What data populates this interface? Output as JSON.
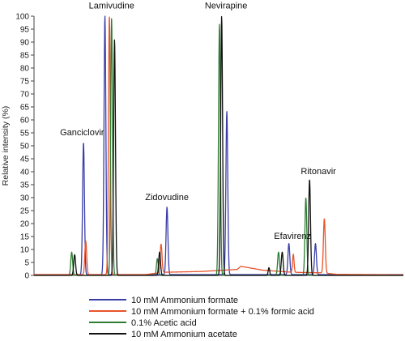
{
  "chart_data": {
    "type": "line",
    "title": "",
    "xlabel": "",
    "ylabel": "Relative intensity (%)",
    "ylim": [
      0,
      100
    ],
    "yticks": [
      0,
      5,
      10,
      15,
      20,
      25,
      30,
      35,
      40,
      45,
      50,
      55,
      60,
      65,
      70,
      75,
      80,
      85,
      90,
      95,
      100
    ],
    "xlim": [
      0,
      100
    ],
    "grid": false,
    "legend_position": "bottom",
    "peak_labels": [
      {
        "text": "Ganciclovir",
        "x": 13,
        "y": 54
      },
      {
        "text": "Lamivudine",
        "x": 21,
        "y": 103
      },
      {
        "text": "Nevirapine",
        "x": 52,
        "y": 103
      },
      {
        "text": "Zidovudine",
        "x": 36,
        "y": 29
      },
      {
        "text": "Efavirenz",
        "x": 70,
        "y": 14
      },
      {
        "text": "Ritonavir",
        "x": 77,
        "y": 39
      }
    ],
    "series": [
      {
        "name": "10 mM Ammonium formate",
        "color": "#3a3fa8",
        "baseline": 0.3,
        "peaks": [
          [
            13.4,
            51,
            0.25
          ],
          [
            19.2,
            100,
            0.25
          ],
          [
            36.0,
            26,
            0.25
          ],
          [
            52.2,
            63,
            0.25
          ],
          [
            69.0,
            12,
            0.25
          ],
          [
            76.2,
            12,
            0.25
          ]
        ]
      },
      {
        "name": "10 mM Ammonium formate + 0.1% formic acid",
        "color": "#e8532b",
        "baseline": 0.2,
        "peaks": [
          [
            14.0,
            13,
            0.25
          ],
          [
            20.4,
            100,
            0.25
          ],
          [
            34.4,
            11,
            0.25
          ],
          [
            70.2,
            7,
            0.2
          ],
          [
            78.6,
            21,
            0.25
          ]
        ],
        "hump": [
          [
            30,
            0.3
          ],
          [
            35,
            1.2
          ],
          [
            45,
            1.5
          ],
          [
            55,
            2.3
          ],
          [
            56,
            3.5
          ],
          [
            58,
            3.0
          ],
          [
            62,
            2.0
          ],
          [
            70,
            1.2
          ],
          [
            78,
            1.0
          ],
          [
            82,
            0.4
          ],
          [
            100,
            0.2
          ]
        ]
      },
      {
        "name": "0.1% Acetic acid",
        "color": "#2e7d32",
        "baseline": 0.0,
        "peaks": [
          [
            10.2,
            9,
            0.25
          ],
          [
            21.0,
            99,
            0.25
          ],
          [
            33.4,
            6.5,
            0.25
          ],
          [
            50.2,
            97,
            0.25
          ],
          [
            66.2,
            9,
            0.25
          ],
          [
            73.6,
            30,
            0.25
          ]
        ]
      },
      {
        "name": "10 mM Ammonium acetate",
        "color": "#111111",
        "baseline": 0.0,
        "peaks": [
          [
            11.0,
            8,
            0.25
          ],
          [
            21.8,
            91,
            0.25
          ],
          [
            34.0,
            9,
            0.25
          ],
          [
            50.8,
            100,
            0.25
          ],
          [
            63.6,
            3,
            0.2
          ],
          [
            67.2,
            9,
            0.25
          ],
          [
            74.6,
            37,
            0.25
          ]
        ]
      }
    ]
  }
}
